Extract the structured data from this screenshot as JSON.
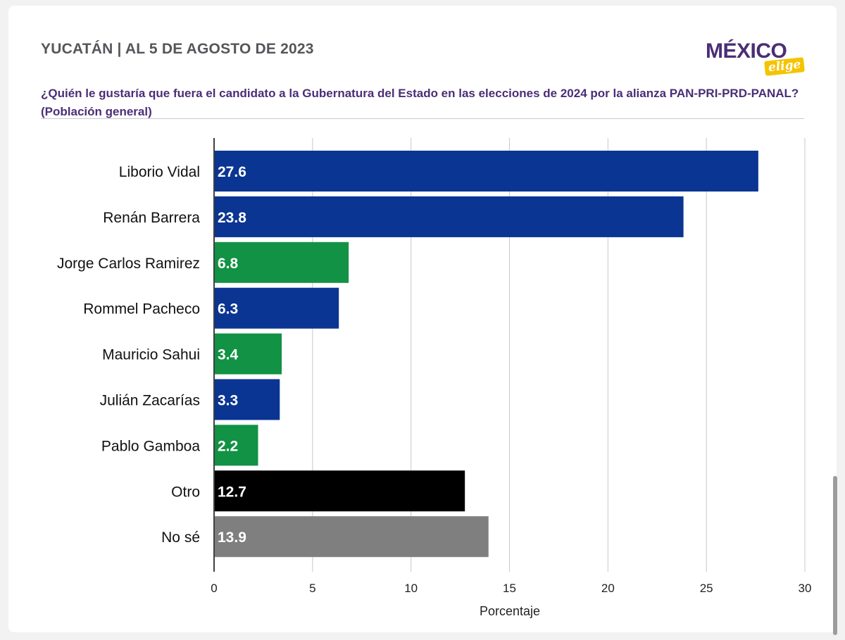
{
  "header": {
    "title": "YUCATÁN | AL 5 DE AGOSTO DE 2023",
    "question": "¿Quién le gustaría que fuera el candidato a la Gubernatura del Estado en las elecciones de 2024 por la alianza PAN-PRI-PRD-PANAL? (Población general)"
  },
  "logo": {
    "main": "MÉXICO",
    "sub": "elige"
  },
  "colors": {
    "blue": "#0a3592",
    "green": "#129244",
    "black": "#000000",
    "gray": "#7f7f7f"
  },
  "chart_data": {
    "type": "bar",
    "orientation": "horizontal",
    "title": "",
    "xlabel": "Porcentaje",
    "ylabel": "",
    "xlim": [
      0,
      30
    ],
    "ticks": [
      0,
      5,
      10,
      15,
      20,
      25,
      30
    ],
    "grid": true,
    "categories": [
      "Liborio Vidal",
      "Renán Barrera",
      "Jorge Carlos Ramirez",
      "Rommel Pacheco",
      "Mauricio Sahui",
      "Julián Zacarías",
      "Pablo Gamboa",
      "Otro",
      "No sé"
    ],
    "values": [
      27.6,
      23.8,
      6.8,
      6.3,
      3.4,
      3.3,
      2.2,
      12.7,
      13.9
    ],
    "value_labels": [
      "27.6",
      "23.8",
      "6.8",
      "6.3",
      "3.4",
      "3.3",
      "2.2",
      "12.7",
      "13.9"
    ],
    "bar_colors": [
      "#0a3592",
      "#0a3592",
      "#129244",
      "#0a3592",
      "#129244",
      "#0a3592",
      "#129244",
      "#000000",
      "#7f7f7f"
    ]
  }
}
